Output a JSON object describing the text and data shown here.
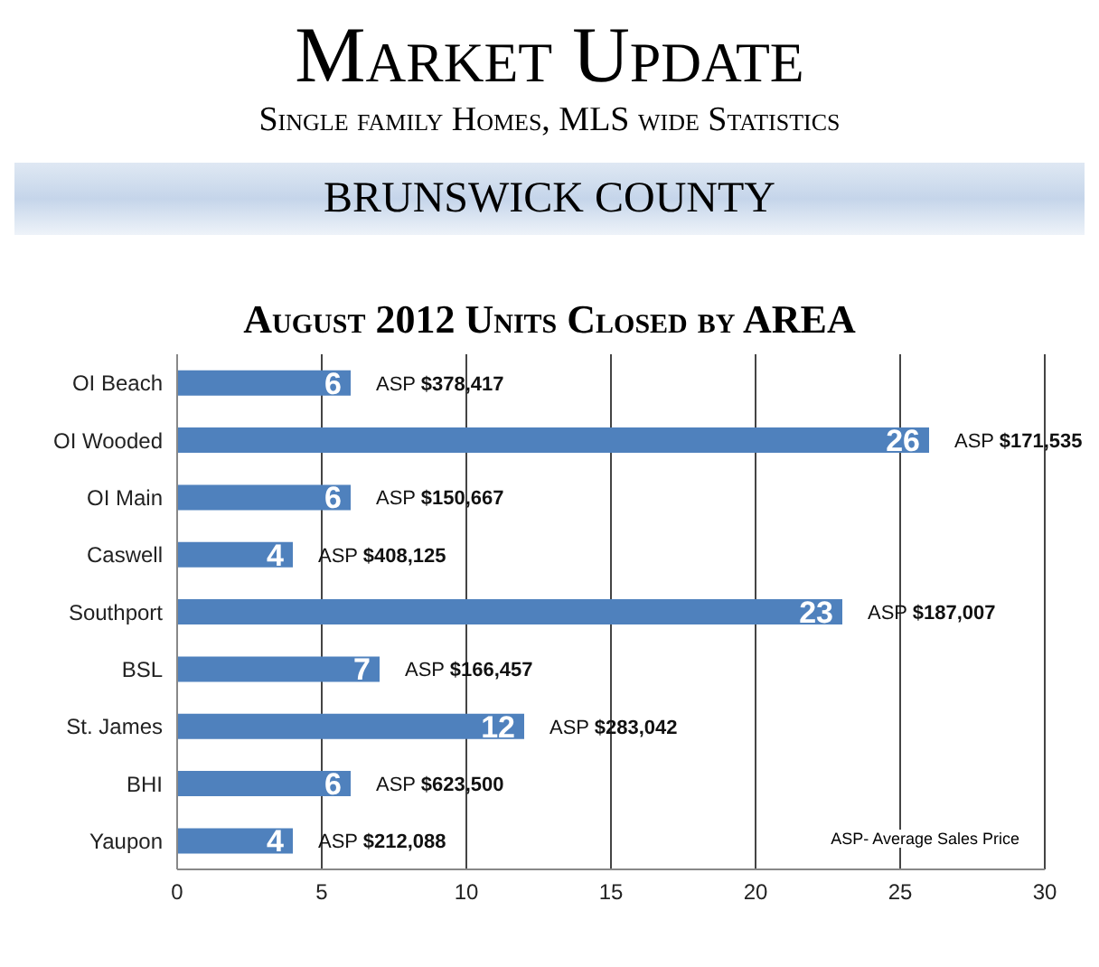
{
  "chart_data": {
    "type": "bar",
    "orientation": "horizontal",
    "title": "Market Update",
    "subtitle": "Single family Homes, MLS wide Statistics",
    "categories": [
      "OI Beach",
      "OI Wooded",
      "OI Main",
      "Caswell",
      "Southport",
      "BSL",
      "St. James",
      "BHI",
      "Yaupon"
    ],
    "values": [
      6,
      26,
      6,
      4,
      23,
      7,
      12,
      6,
      4
    ],
    "color": "#4f81bd",
    "data_labels": true,
    "xlim": [
      0,
      30
    ],
    "xticks": [
      0,
      5,
      10,
      15,
      20,
      25,
      30
    ],
    "grid": "x",
    "annotations": [
      "BRUNSWICK COUNTY",
      "August 2012 Units Closed by AREA",
      {
        "text": "ASP $378,417",
        "x": 6,
        "y": "OI Beach"
      },
      {
        "text": "ASP $171,535",
        "x": 26,
        "y": "OI Wooded"
      },
      {
        "text": "ASP $150,667",
        "x": 6,
        "y": "OI Main"
      },
      {
        "text": "ASP $408,125",
        "x": 4,
        "y": "Caswell"
      },
      {
        "text": "ASP $187,007",
        "x": 23,
        "y": "Southport"
      },
      {
        "text": "ASP $166,457",
        "x": 7,
        "y": "BSL"
      },
      {
        "text": "ASP $283,042",
        "x": 12,
        "y": "St. James"
      },
      {
        "text": "ASP $623,500",
        "x": 6,
        "y": "BHI"
      },
      {
        "text": "ASP $212,088",
        "x": 4,
        "y": "Yaupon"
      },
      "ASP- Average Sales Price"
    ]
  }
}
